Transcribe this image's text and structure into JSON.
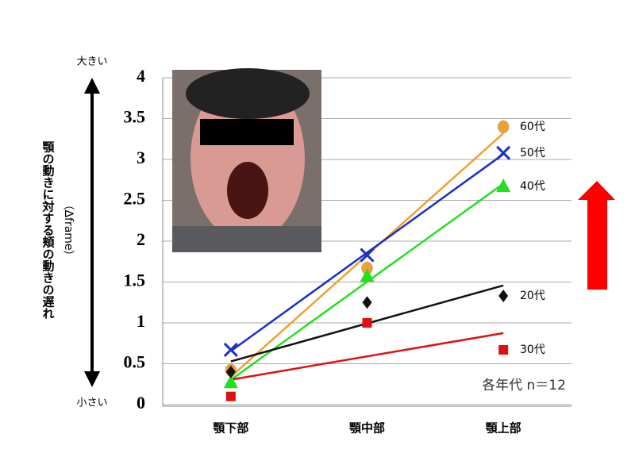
{
  "chart_data": {
    "type": "line",
    "y_label": "顎の動きに対する頬の動きの遅れ",
    "y_unit": "（Δframe）",
    "y_high": "大きい",
    "y_low": "小さい",
    "note": "各年代 n＝12",
    "categories": [
      "顎下部",
      "顎中部",
      "顎上部"
    ],
    "ylim": [
      0,
      4
    ],
    "yticks": [
      0,
      0.5,
      1,
      1.5,
      2,
      2.5,
      3,
      3.5,
      4
    ],
    "grid": true,
    "trendline": true,
    "series": [
      {
        "name": "60代",
        "color": "#f0a030",
        "marker": "circle",
        "values": [
          0.42,
          1.67,
          3.4
        ]
      },
      {
        "name": "50代",
        "color": "#1a2fc8",
        "marker": "x",
        "values": [
          0.67,
          1.83,
          3.08
        ]
      },
      {
        "name": "40代",
        "color": "#22e01e",
        "marker": "triangle",
        "values": [
          0.27,
          1.57,
          2.67
        ]
      },
      {
        "name": "20代",
        "color": "#111111",
        "marker": "diamond",
        "values": [
          0.4,
          1.25,
          1.33
        ]
      },
      {
        "name": "30代",
        "color": "#e01010",
        "marker": "square",
        "values": [
          0.1,
          1.0,
          0.67
        ]
      }
    ]
  }
}
